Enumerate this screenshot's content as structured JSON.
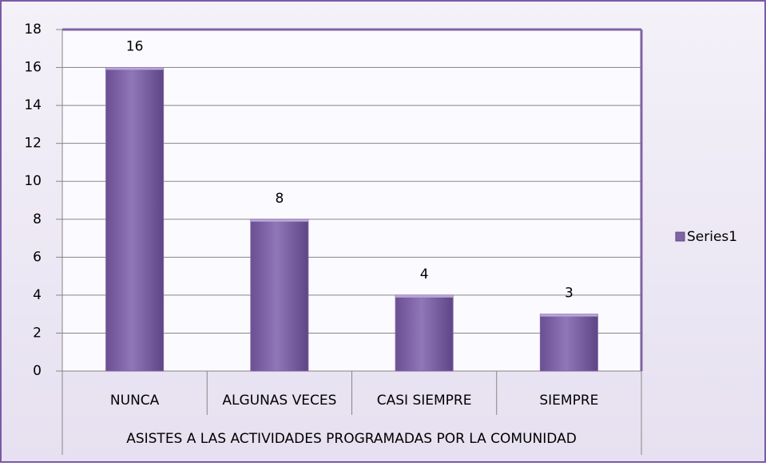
{
  "chart_data": {
    "type": "bar",
    "categories": [
      "NUNCA",
      "ALGUNAS VECES",
      "CASI SIEMPRE",
      "SIEMPRE"
    ],
    "series": [
      {
        "name": "Series1",
        "color": "#8064a2",
        "values": [
          16,
          8,
          4,
          3
        ]
      }
    ],
    "x_label": "ASISTES A LAS ACTIVIDADES PROGRAMADAS POR LA COMUNIDAD",
    "ylim": [
      0,
      18
    ],
    "yticks": [
      0,
      2,
      4,
      6,
      8,
      10,
      12,
      14,
      16,
      18
    ],
    "grid": true,
    "legend": "right"
  }
}
